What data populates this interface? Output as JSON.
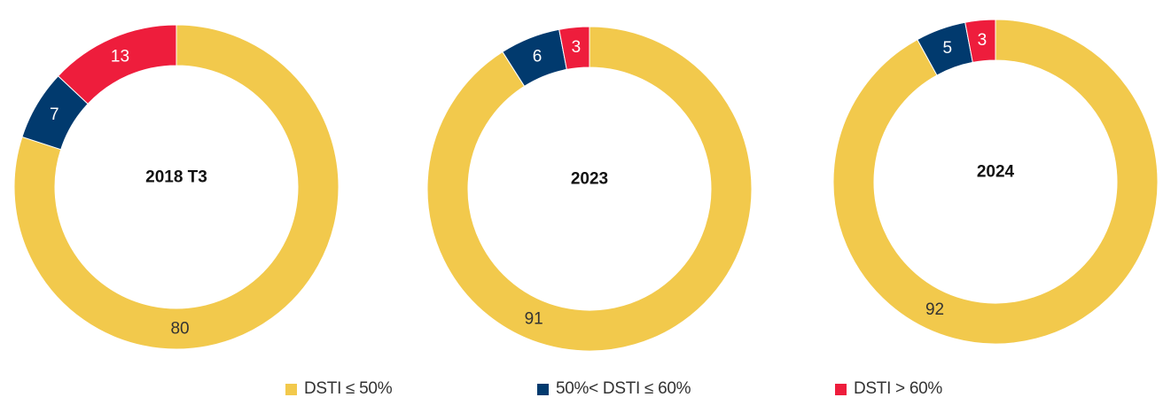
{
  "colors": {
    "dsti_le_50": "#F2C94C",
    "dsti_50_60": "#013A6E",
    "dsti_gt_60": "#EE1D3C"
  },
  "legend": {
    "items": [
      {
        "label": "DSTI ≤ 50%",
        "color": "#F2C94C"
      },
      {
        "label": "50%< DSTI ≤ 60%",
        "color": "#013A6E"
      },
      {
        "label": "DSTI > 60%",
        "color": "#EE1D3C"
      }
    ]
  },
  "chart_data": [
    {
      "type": "pie",
      "title": "2018 T3",
      "categories": [
        "DSTI ≤ 50%",
        "50%< DSTI ≤ 60%",
        "DSTI > 60%"
      ],
      "values": [
        80,
        7,
        13
      ]
    },
    {
      "type": "pie",
      "title": "2023",
      "categories": [
        "DSTI ≤ 50%",
        "50%< DSTI ≤ 60%",
        "DSTI > 60%"
      ],
      "values": [
        91,
        6,
        3
      ]
    },
    {
      "type": "pie",
      "title": "2024",
      "categories": [
        "DSTI ≤ 50%",
        "50%< DSTI ≤ 60%",
        "DSTI > 60%"
      ],
      "values": [
        92,
        5,
        3
      ]
    }
  ]
}
